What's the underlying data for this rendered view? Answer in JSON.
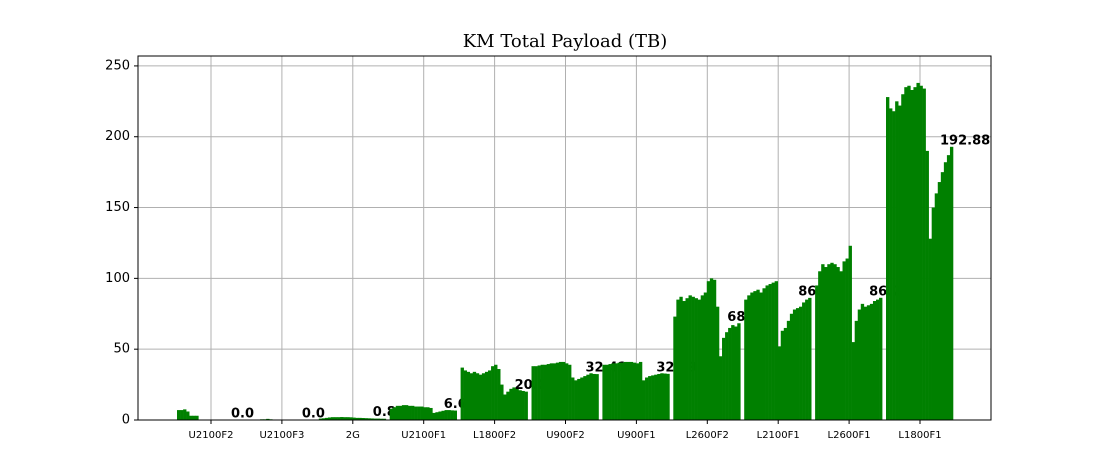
{
  "chart_data": {
    "type": "grouped-daily-bar",
    "title": "KM Total Payload (TB)",
    "color": "#008000",
    "grid": true,
    "ylim": [
      0,
      257
    ],
    "yticks": [
      0,
      50,
      100,
      150,
      200,
      250
    ],
    "groups": [
      {
        "name": "U2100F2",
        "values": [
          7,
          7,
          7.5,
          6,
          3,
          3,
          3,
          0,
          0,
          0,
          0,
          0,
          0,
          0,
          0,
          0,
          0,
          0,
          0,
          0,
          0,
          0
        ],
        "value_label": "0.0"
      },
      {
        "name": "U2100F3",
        "values": [
          0,
          0,
          0,
          0.3,
          0.5,
          0.5,
          0.8,
          0.5,
          0.3,
          0,
          0,
          0,
          0,
          0,
          0,
          0,
          0,
          0,
          0,
          0,
          0,
          0
        ],
        "value_label": "0.0"
      },
      {
        "name": "2G",
        "values": [
          1,
          1.2,
          1.5,
          1.8,
          2,
          2,
          2,
          2.1,
          2,
          2,
          1.9,
          1.7,
          1.5,
          1.5,
          1.4,
          1.3,
          1.2,
          1.1,
          1,
          1,
          0.9,
          0.89
        ],
        "value_label": "0.89"
      },
      {
        "name": "U2100F1",
        "values": [
          8,
          9,
          10,
          10,
          10.5,
          10.5,
          10,
          10,
          9.5,
          9.5,
          9.5,
          9,
          9,
          8.5,
          5,
          5.5,
          6,
          6.5,
          7,
          7,
          6.8,
          6.67
        ],
        "value_label": "6.67"
      },
      {
        "name": "L1800F2",
        "values": [
          37,
          35,
          34,
          33,
          34,
          33,
          32,
          33,
          34,
          35,
          38,
          39,
          36,
          25,
          18,
          20,
          22,
          23,
          22,
          21,
          20.5,
          20.03
        ],
        "value_label": "20.03"
      },
      {
        "name": "U900F2",
        "values": [
          38,
          38,
          38.5,
          39,
          39,
          39.5,
          40,
          40,
          40.5,
          41,
          41,
          40,
          39,
          30,
          28,
          29,
          30,
          31,
          32,
          33,
          32.5,
          32.41
        ],
        "value_label": "32.41"
      },
      {
        "name": "U900F1",
        "values": [
          39,
          39,
          39.5,
          40,
          40,
          40.5,
          40.5,
          41,
          41,
          41,
          40.5,
          40,
          41,
          28,
          30,
          31,
          31.5,
          32,
          32.5,
          33,
          32.8,
          32.59
        ],
        "value_label": "32.59"
      },
      {
        "name": "L2600F2",
        "values": [
          73,
          85,
          87,
          84,
          86,
          88,
          87,
          86,
          85,
          88,
          90,
          98,
          100,
          99,
          80,
          45,
          58,
          62,
          65,
          67,
          66,
          68.3
        ],
        "value_label": "68.3"
      },
      {
        "name": "L2100F1",
        "values": [
          85,
          88,
          90,
          91,
          92,
          90,
          93,
          95,
          96,
          97,
          98,
          52,
          63,
          65,
          70,
          75,
          78,
          79,
          80,
          83,
          85,
          86.23
        ],
        "value_label": "86.23"
      },
      {
        "name": "L2600F1",
        "values": [
          95,
          105,
          110,
          108,
          110,
          111,
          110,
          108,
          105,
          112,
          114,
          123,
          55,
          70,
          78,
          82,
          80,
          81,
          82,
          84,
          85,
          86.27
        ],
        "value_label": "86.27"
      },
      {
        "name": "L1800F1",
        "values": [
          228,
          220,
          218,
          225,
          222,
          230,
          235,
          236,
          233,
          235,
          238,
          236,
          234,
          190,
          128,
          150,
          160,
          168,
          175,
          182,
          187,
          192.88
        ],
        "value_label": "192.88"
      }
    ]
  }
}
